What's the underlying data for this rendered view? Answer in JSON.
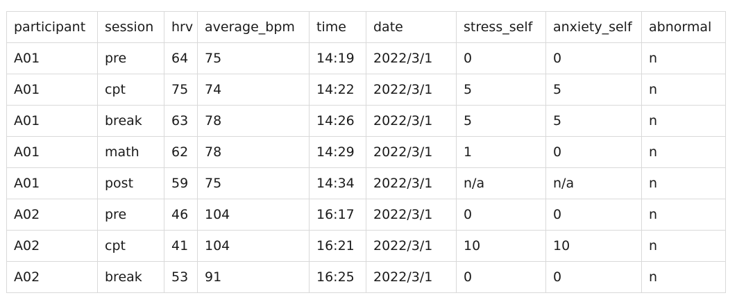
{
  "table": {
    "columns": [
      "participant",
      "session",
      "hrv",
      "average_bpm",
      "time",
      "date",
      "stress_self",
      "anxiety_self",
      "abnormal"
    ],
    "rows": [
      [
        "A01",
        "pre",
        "64",
        "75",
        "14:19",
        "2022/3/1",
        "0",
        "0",
        "n"
      ],
      [
        "A01",
        "cpt",
        "75",
        "74",
        "14:22",
        "2022/3/1",
        "5",
        "5",
        "n"
      ],
      [
        "A01",
        "break",
        "63",
        "78",
        "14:26",
        "2022/3/1",
        "5",
        "5",
        "n"
      ],
      [
        "A01",
        "math",
        "62",
        "78",
        "14:29",
        "2022/3/1",
        "1",
        "0",
        "n"
      ],
      [
        "A01",
        "post",
        "59",
        "75",
        "14:34",
        "2022/3/1",
        "n/a",
        "n/a",
        "n"
      ],
      [
        "A02",
        "pre",
        "46",
        "104",
        "16:17",
        "2022/3/1",
        "0",
        "0",
        "n"
      ],
      [
        "A02",
        "cpt",
        "41",
        "104",
        "16:21",
        "2022/3/1",
        "10",
        "10",
        "n"
      ],
      [
        "A02",
        "break",
        "53",
        "91",
        "16:25",
        "2022/3/1",
        "0",
        "0",
        "n"
      ]
    ]
  }
}
